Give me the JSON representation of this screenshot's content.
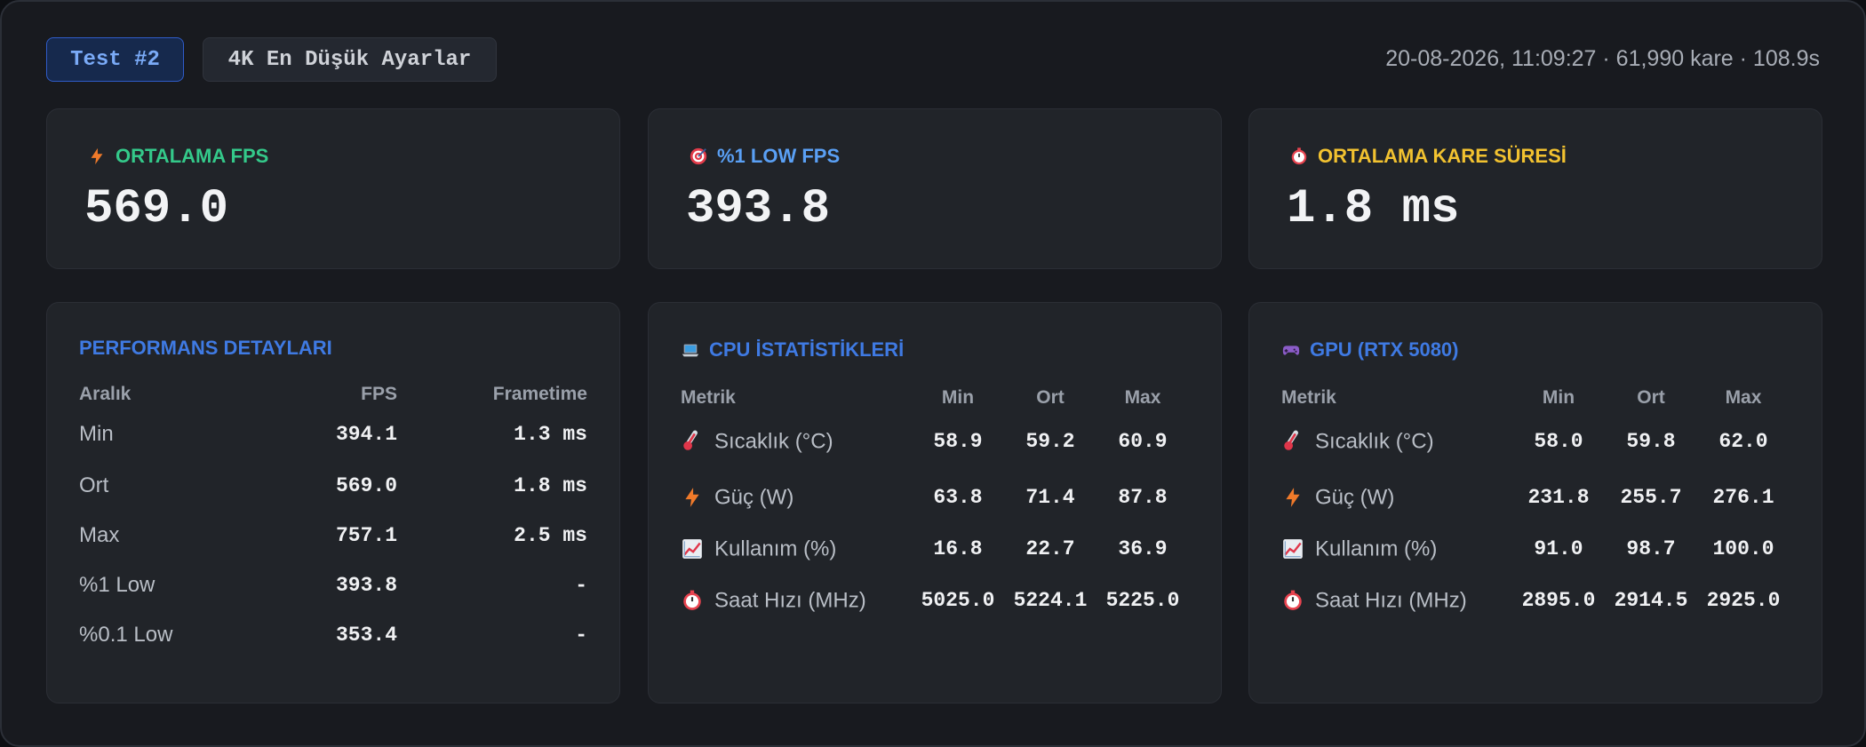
{
  "header": {
    "test_tag": "Test #2",
    "preset": "4K En Düşük Ayarlar",
    "meta": "20-08-2026, 11:09:27 · 61,990 kare · 108.9s"
  },
  "kpis": [
    {
      "label": "ORTALAMA FPS",
      "value": "569.0",
      "color": "#34c98a",
      "icon": "lightning-icon"
    },
    {
      "label": "%1 LOW FPS",
      "value": "393.8",
      "color": "#5aa0f5",
      "icon": "target-icon"
    },
    {
      "label": "ORTALAMA KARE SÜRESİ",
      "value": "1.8 ms",
      "color": "#f2c230",
      "icon": "stopwatch-icon"
    }
  ],
  "performance": {
    "title": "PERFORMANS DETAYLARI",
    "headers": [
      "Aralık",
      "FPS",
      "Frametime"
    ],
    "rows": [
      {
        "label": "Min",
        "fps": "394.1",
        "ft": "1.3 ms"
      },
      {
        "label": "Ort",
        "fps": "569.0",
        "ft": "1.8 ms"
      },
      {
        "label": "Max",
        "fps": "757.1",
        "ft": "2.5 ms"
      },
      {
        "label": "%1 Low",
        "fps": "393.8",
        "ft": "-"
      },
      {
        "label": "%0.1 Low",
        "fps": "353.4",
        "ft": "-"
      }
    ]
  },
  "cpu": {
    "title": "CPU İSTATİSTİKLERİ",
    "headers": [
      "Metrik",
      "Min",
      "Ort",
      "Max"
    ],
    "rows": [
      {
        "label": "Sıcaklık (°C)",
        "min": "58.9",
        "avg": "59.2",
        "max": "60.9",
        "icon": "thermometer-icon"
      },
      {
        "label": "Güç (W)",
        "min": "63.8",
        "avg": "71.4",
        "max": "87.8",
        "icon": "lightning-icon"
      },
      {
        "label": "Kullanım (%)",
        "min": "16.8",
        "avg": "22.7",
        "max": "36.9",
        "icon": "chart-icon"
      },
      {
        "label": "Saat Hızı (MHz)",
        "min": "5025.0",
        "avg": "5224.1",
        "max": "5225.0",
        "icon": "stopwatch-icon"
      }
    ]
  },
  "gpu": {
    "title": "GPU (RTX 5080)",
    "headers": [
      "Metrik",
      "Min",
      "Ort",
      "Max"
    ],
    "rows": [
      {
        "label": "Sıcaklık (°C)",
        "min": "58.0",
        "avg": "59.8",
        "max": "62.0",
        "icon": "thermometer-icon"
      },
      {
        "label": "Güç (W)",
        "min": "231.8",
        "avg": "255.7",
        "max": "276.1",
        "icon": "lightning-icon"
      },
      {
        "label": "Kullanım (%)",
        "min": "91.0",
        "avg": "98.7",
        "max": "100.0",
        "icon": "chart-icon"
      },
      {
        "label": "Saat Hızı (MHz)",
        "min": "2895.0",
        "avg": "2914.5",
        "max": "2925.0",
        "icon": "stopwatch-icon"
      }
    ]
  }
}
